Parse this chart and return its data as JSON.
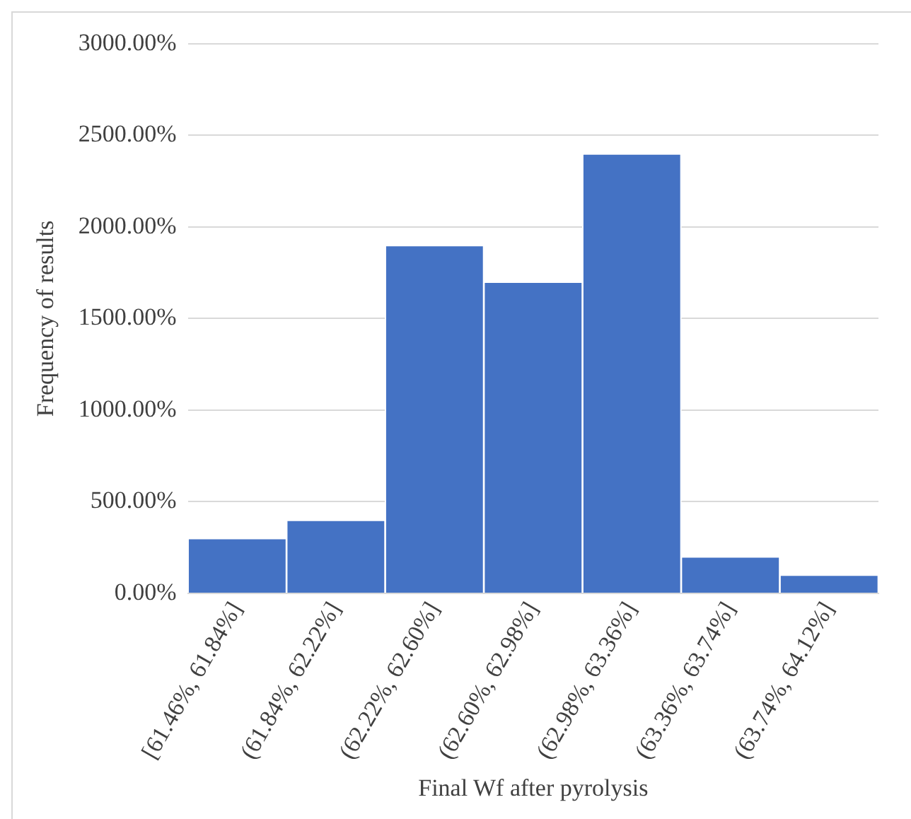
{
  "chart_data": {
    "type": "bar",
    "xlabel": "Final Wf after pyrolysis",
    "ylabel": "Frequency of results",
    "categories": [
      "[61.46%, 61.84%]",
      "(61.84%, 62.22%]",
      "(62.22%, 62.60%]",
      "(62.60%, 62.98%]",
      "(62.98%, 63.36%]",
      "(63.36%, 63.74%]",
      "(63.74%, 64.12%]"
    ],
    "values": [
      300,
      400,
      1900,
      1700,
      2400,
      200,
      100
    ],
    "color": "#4472c4",
    "ylim": [
      0,
      3000
    ],
    "yticks": [
      {
        "value": 0,
        "label": "0.00%"
      },
      {
        "value": 500,
        "label": "500.00%"
      },
      {
        "value": 1000,
        "label": "1000.00%"
      },
      {
        "value": 1500,
        "label": "1500.00%"
      },
      {
        "value": 2000,
        "label": "2000.00%"
      },
      {
        "value": 2500,
        "label": "2500.00%"
      },
      {
        "value": 3000,
        "label": "3000.00%"
      }
    ],
    "grid": "y"
  }
}
